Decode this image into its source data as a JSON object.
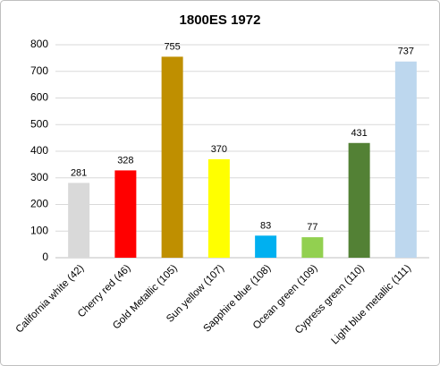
{
  "chart_data": {
    "type": "bar",
    "title": "1800ES 1972",
    "categories": [
      "California white (42)",
      "Cherry red (46)",
      "Gold Metallic (105)",
      "Sun yellow (107)",
      "Sapphire blue (108)",
      "Ocean green (109)",
      "Cypress green (110)",
      "Light blue metallic (111)"
    ],
    "values": [
      281,
      328,
      755,
      370,
      83,
      77,
      431,
      737
    ],
    "colors": [
      "#d9d9d9",
      "#ff0000",
      "#bf8f00",
      "#ffff00",
      "#00b0f0",
      "#92d050",
      "#538135",
      "#bdd7ee"
    ],
    "ylim": [
      0,
      800
    ],
    "yticks": [
      0,
      100,
      200,
      300,
      400,
      500,
      600,
      700,
      800
    ],
    "grid": true
  }
}
